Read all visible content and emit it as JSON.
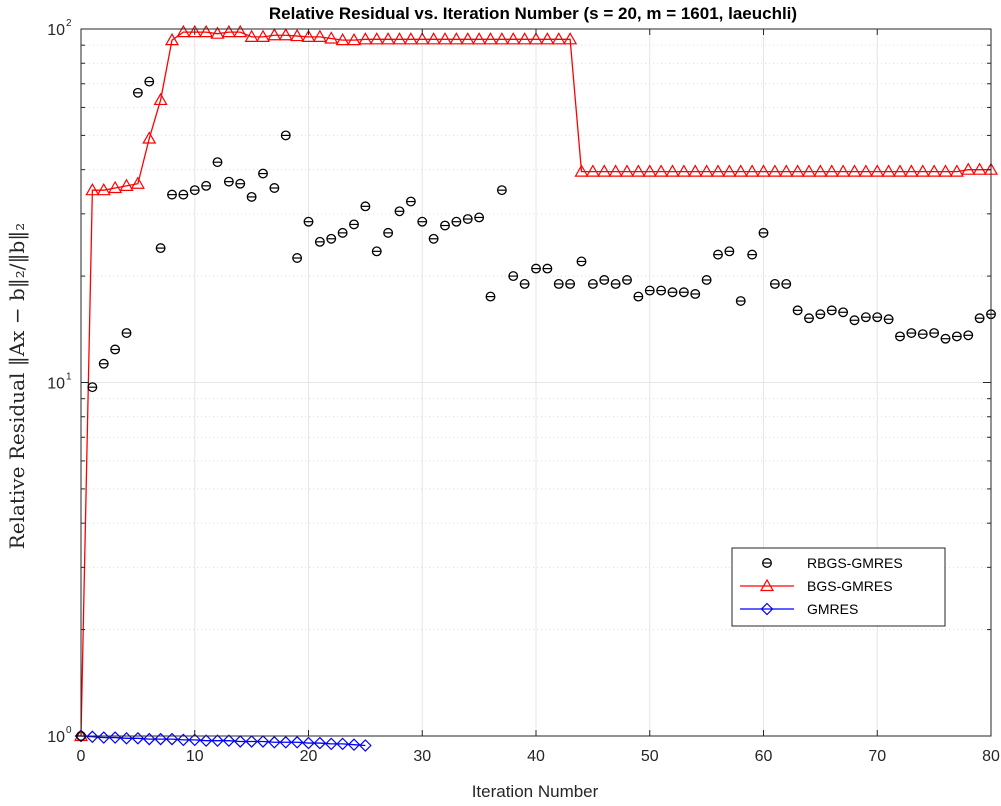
{
  "chart_data": {
    "type": "scatter",
    "title": "Relative Residual vs. Iteration Number (s = 20, m = 1601, laeuchli)",
    "xlabel": "Iteration Number",
    "ylabel": "Relative Residual ‖Ax − b‖₂/‖b‖₂",
    "xlim": [
      0,
      80
    ],
    "ylim": [
      1,
      100
    ],
    "yscale": "log",
    "grid": true,
    "legend_position": "bottom-right",
    "x_ticks": [
      "0",
      "10",
      "20",
      "30",
      "40",
      "50",
      "60",
      "70",
      "80"
    ],
    "y_ticks": [
      {
        "base": "10",
        "exp": "0"
      },
      {
        "base": "10",
        "exp": "1"
      },
      {
        "base": "10",
        "exp": "2"
      }
    ],
    "colors": {
      "RBGS-GMRES": "#000000",
      "BGS-GMRES": "#ff0000",
      "GMRES": "#0000ff",
      "grid": "#e6e6e6",
      "axis": "#262626"
    },
    "series": [
      {
        "name": "RBGS-GMRES",
        "style": "markers",
        "marker": "circle-errorbar",
        "x": [
          0,
          1,
          2,
          3,
          4,
          5,
          6,
          7,
          8,
          9,
          10,
          11,
          12,
          13,
          14,
          15,
          16,
          17,
          18,
          19,
          20,
          21,
          22,
          23,
          24,
          25,
          26,
          27,
          28,
          29,
          30,
          31,
          32,
          33,
          34,
          35,
          36,
          37,
          38,
          39,
          40,
          41,
          42,
          43,
          44,
          45,
          46,
          47,
          48,
          49,
          50,
          51,
          52,
          53,
          54,
          55,
          56,
          57,
          58,
          59,
          60,
          61,
          62,
          63,
          64,
          65,
          66,
          67,
          68,
          69,
          70,
          71,
          72,
          73,
          74,
          75,
          76,
          77,
          78,
          79,
          80
        ],
        "y": [
          1.0,
          9.7,
          11.3,
          12.4,
          13.8,
          66,
          71,
          24,
          34,
          34,
          35,
          36,
          42,
          37,
          36.5,
          33.5,
          39,
          35.5,
          50,
          22.5,
          28.5,
          25,
          25.5,
          26.5,
          28,
          31.5,
          23.5,
          26.5,
          30.5,
          32.5,
          28.5,
          25.5,
          27.8,
          28.5,
          29,
          29.3,
          17.5,
          35,
          20,
          19,
          21,
          21,
          19,
          19,
          22,
          19,
          19.5,
          19,
          19.5,
          17.5,
          18.2,
          18.2,
          18,
          18,
          17.8,
          19.5,
          23,
          23.5,
          17,
          23,
          26.5,
          19,
          19,
          16,
          15.2,
          15.6,
          16,
          15.8,
          15,
          15.3,
          15.3,
          15.1,
          13.5,
          13.8,
          13.7,
          13.8,
          13.3,
          13.5,
          13.6,
          15.2,
          15.6
        ]
      },
      {
        "name": "BGS-GMRES",
        "style": "line-markers",
        "marker": "triangle",
        "x": [
          0,
          1,
          2,
          3,
          4,
          5,
          6,
          7,
          8,
          9,
          10,
          11,
          12,
          13,
          14,
          15,
          16,
          17,
          18,
          19,
          20,
          21,
          22,
          23,
          24,
          25,
          26,
          27,
          28,
          29,
          30,
          31,
          32,
          33,
          34,
          35,
          36,
          37,
          38,
          39,
          40,
          41,
          42,
          43,
          44,
          45,
          46,
          47,
          48,
          49,
          50,
          51,
          52,
          53,
          54,
          55,
          56,
          57,
          58,
          59,
          60,
          61,
          62,
          63,
          64,
          65,
          66,
          67,
          68,
          69,
          70,
          71,
          72,
          73,
          74,
          75,
          76,
          77,
          78,
          79,
          80
        ],
        "y": [
          1.0,
          35,
          35,
          35.5,
          36,
          36.5,
          49,
          63,
          93,
          98,
          98,
          98,
          97,
          98,
          98,
          95,
          95,
          96,
          96,
          95.5,
          95,
          95,
          94,
          93,
          93,
          93.5,
          93.5,
          93.5,
          93.5,
          93.5,
          93.5,
          93.5,
          93.5,
          93.5,
          93.5,
          93.5,
          93.5,
          93.5,
          93.5,
          93.5,
          93.5,
          93.5,
          93.5,
          93.5,
          39.5,
          39.5,
          39.5,
          39.5,
          39.5,
          39.5,
          39.5,
          39.5,
          39.5,
          39.5,
          39.5,
          39.5,
          39.5,
          39.5,
          39.5,
          39.5,
          39.5,
          39.5,
          39.5,
          39.5,
          39.5,
          39.5,
          39.5,
          39.5,
          39.5,
          39.5,
          39.5,
          39.5,
          39.5,
          39.5,
          39.5,
          39.5,
          39.5,
          39.5,
          40,
          40,
          40
        ]
      },
      {
        "name": "GMRES",
        "style": "line-markers",
        "marker": "diamond",
        "x": [
          0,
          1,
          2,
          3,
          4,
          5,
          6,
          7,
          8,
          9,
          10,
          11,
          12,
          13,
          14,
          15,
          16,
          17,
          18,
          19,
          20,
          21,
          22,
          23,
          24,
          25
        ],
        "y": [
          1.0,
          0.995,
          0.99,
          0.99,
          0.985,
          0.985,
          0.98,
          0.98,
          0.98,
          0.975,
          0.975,
          0.97,
          0.97,
          0.97,
          0.965,
          0.965,
          0.965,
          0.96,
          0.96,
          0.96,
          0.955,
          0.955,
          0.95,
          0.95,
          0.945,
          0.94
        ]
      }
    ]
  }
}
